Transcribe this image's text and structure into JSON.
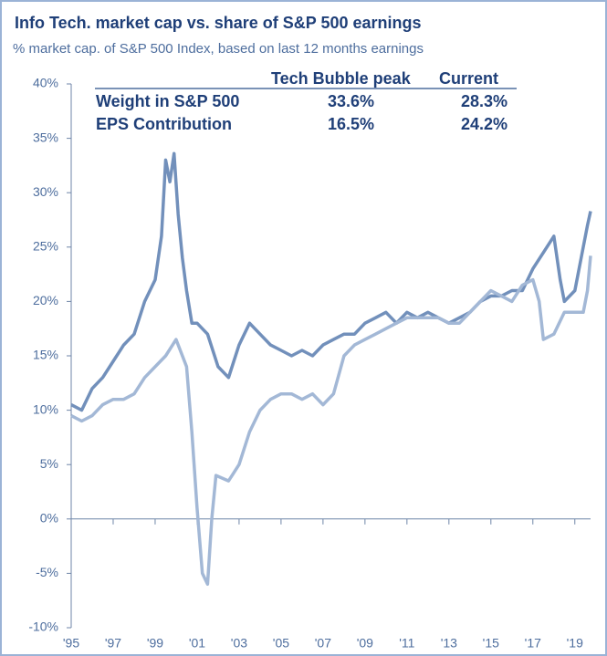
{
  "chart_data": {
    "type": "line",
    "title": "Info Tech. market cap vs. share of S&P 500 earnings",
    "subtitle": "% market cap. of S&P 500 Index, based on last 12 months earnings",
    "table": {
      "header": [
        "Tech Bubble peak",
        "Current"
      ],
      "rows": [
        {
          "label": "Weight in S&P 500",
          "cells": [
            "33.6%",
            "28.3%"
          ]
        },
        {
          "label": "EPS Contribution",
          "cells": [
            "16.5%",
            "24.2%"
          ]
        }
      ]
    },
    "series": [
      {
        "color": "#7290bb",
        "x": [
          1995,
          1995.5,
          1996,
          1996.5,
          1997,
          1997.5,
          1998,
          1998.5,
          1999,
          1999.3,
          1999.5,
          1999.7,
          1999.9,
          2000.1,
          2000.3,
          2000.5,
          2000.75,
          2001,
          2001.5,
          2002,
          2002.5,
          2003,
          2003.5,
          2004,
          2004.5,
          2005,
          2005.5,
          2006,
          2006.5,
          2007,
          2007.5,
          2008,
          2008.5,
          2009,
          2009.5,
          2010,
          2010.5,
          2011,
          2011.5,
          2012,
          2012.5,
          2013,
          2013.5,
          2014,
          2014.5,
          2015,
          2015.5,
          2016,
          2016.5,
          2017,
          2017.5,
          2018,
          2018.3,
          2018.5,
          2019,
          2019.3,
          2019.6,
          2019.75
        ],
        "values": [
          10.5,
          10,
          12,
          13,
          14.5,
          16,
          17,
          20,
          22,
          26,
          33,
          31,
          33.6,
          28,
          24,
          21,
          18,
          18,
          17,
          14,
          13,
          16,
          18,
          17,
          16,
          15.5,
          15,
          15.5,
          15,
          16,
          16.5,
          17,
          17,
          18,
          18.5,
          19,
          18,
          19,
          18.5,
          19,
          18.5,
          18,
          18.5,
          19,
          20,
          20.5,
          20.5,
          21,
          21,
          23,
          24.5,
          26,
          22,
          20,
          21,
          24,
          27,
          28.3
        ]
      },
      {
        "color": "#a3b8d6",
        "x": [
          1995,
          1995.5,
          1996,
          1996.5,
          1997,
          1997.5,
          1998,
          1998.5,
          1999,
          1999.5,
          2000,
          2000.5,
          2000.75,
          2001,
          2001.25,
          2001.5,
          2001.7,
          2001.9,
          2002.5,
          2003,
          2003.5,
          2004,
          2004.5,
          2005,
          2005.5,
          2006,
          2006.5,
          2007,
          2007.5,
          2008,
          2008.5,
          2009,
          2009.5,
          2010,
          2010.5,
          2011,
          2011.5,
          2012,
          2012.5,
          2013,
          2013.5,
          2014,
          2014.5,
          2015,
          2015.5,
          2016,
          2016.5,
          2017,
          2017.3,
          2017.5,
          2018,
          2018.5,
          2019,
          2019.4,
          2019.6,
          2019.75
        ],
        "values": [
          9.5,
          9,
          9.5,
          10.5,
          11,
          11,
          11.5,
          13,
          14,
          15,
          16.5,
          14,
          8,
          1,
          -5,
          -6,
          0,
          4,
          3.5,
          5,
          8,
          10,
          11,
          11.5,
          11.5,
          11,
          11.5,
          10.5,
          11.5,
          15,
          16,
          16.5,
          17,
          17.5,
          18,
          18.5,
          18.5,
          18.5,
          18.5,
          18,
          18,
          19,
          20,
          21,
          20.5,
          20,
          21.5,
          22,
          20,
          16.5,
          17,
          19,
          19,
          19,
          21,
          24.2
        ]
      }
    ],
    "xlim": [
      1995,
      2019.75
    ],
    "xticks": [
      {
        "value": 1995,
        "label": "'95"
      },
      {
        "value": 1997,
        "label": "'97"
      },
      {
        "value": 1999,
        "label": "'99"
      },
      {
        "value": 2001,
        "label": "'01"
      },
      {
        "value": 2003,
        "label": "'03"
      },
      {
        "value": 2005,
        "label": "'05"
      },
      {
        "value": 2007,
        "label": "'07"
      },
      {
        "value": 2009,
        "label": "'09"
      },
      {
        "value": 2011,
        "label": "'11"
      },
      {
        "value": 2013,
        "label": "'13"
      },
      {
        "value": 2015,
        "label": "'15"
      },
      {
        "value": 2017,
        "label": "'17"
      },
      {
        "value": 2019,
        "label": "'19"
      }
    ],
    "ylim": [
      -10,
      40
    ],
    "yticks": [
      {
        "value": -10,
        "label": "-10%"
      },
      {
        "value": -5,
        "label": "-5%"
      },
      {
        "value": 0,
        "label": "0%"
      },
      {
        "value": 5,
        "label": "5%"
      },
      {
        "value": 10,
        "label": "10%"
      },
      {
        "value": 15,
        "label": "15%"
      },
      {
        "value": 20,
        "label": "20%"
      },
      {
        "value": 25,
        "label": "25%"
      },
      {
        "value": 30,
        "label": "30%"
      },
      {
        "value": 35,
        "label": "35%"
      },
      {
        "value": 40,
        "label": "40%"
      }
    ]
  }
}
